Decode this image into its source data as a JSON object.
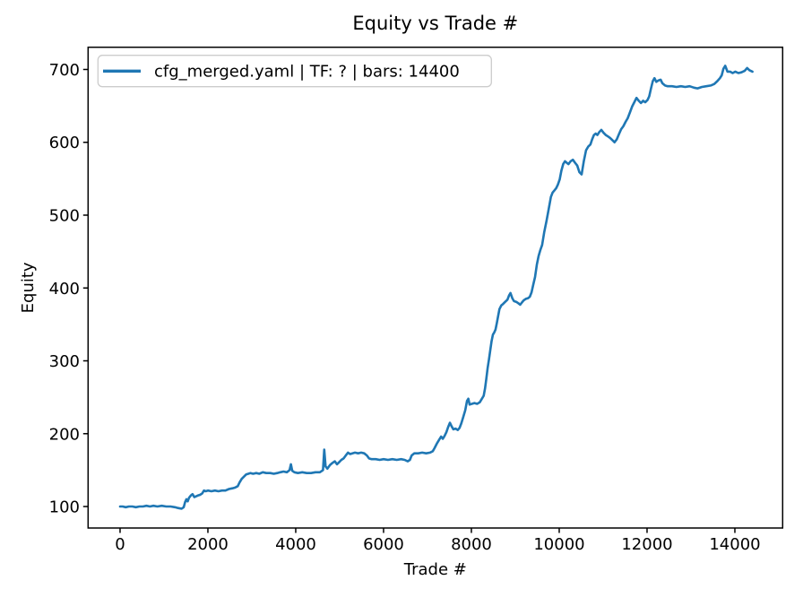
{
  "figure": {
    "title": "Equity vs Trade #",
    "xlabel": "Trade #",
    "ylabel": "Equity",
    "legend": {
      "label": "cfg_merged.yaml | TF: ? | bars: 14400",
      "position": "upper left",
      "edge_color": "#cccccc"
    }
  },
  "chart_data": {
    "type": "line",
    "title": "Equity vs Trade #",
    "xlabel": "Trade #",
    "ylabel": "Equity",
    "grid": false,
    "legend_entries": [
      "cfg_merged.yaml | TF: ? | bars: 14400"
    ],
    "legend_position": "upper left",
    "line_color": "#1f77b4",
    "background": "#ffffff",
    "xlim": [
      -728,
      15088
    ],
    "ylim": [
      70.5,
      730.5
    ],
    "x_ticks": [
      0,
      2000,
      4000,
      6000,
      8000,
      10000,
      12000,
      14000
    ],
    "y_ticks": [
      100,
      200,
      300,
      400,
      500,
      600,
      700
    ],
    "series": [
      {
        "name": "cfg_merged.yaml | TF: ? | bars: 14400",
        "points": [
          [
            0,
            100
          ],
          [
            60,
            100
          ],
          [
            130,
            99
          ],
          [
            200,
            100
          ],
          [
            280,
            100
          ],
          [
            360,
            99
          ],
          [
            440,
            100
          ],
          [
            520,
            100
          ],
          [
            600,
            101
          ],
          [
            680,
            100
          ],
          [
            760,
            101
          ],
          [
            850,
            100
          ],
          [
            950,
            101
          ],
          [
            1050,
            100
          ],
          [
            1150,
            100
          ],
          [
            1250,
            99
          ],
          [
            1320,
            98
          ],
          [
            1400,
            97
          ],
          [
            1450,
            99
          ],
          [
            1480,
            106
          ],
          [
            1510,
            110
          ],
          [
            1540,
            107
          ],
          [
            1570,
            112
          ],
          [
            1610,
            115
          ],
          [
            1650,
            117
          ],
          [
            1690,
            113
          ],
          [
            1730,
            114
          ],
          [
            1770,
            115
          ],
          [
            1820,
            116
          ],
          [
            1870,
            118
          ],
          [
            1910,
            122
          ],
          [
            1950,
            121
          ],
          [
            2000,
            122
          ],
          [
            2080,
            121
          ],
          [
            2160,
            122
          ],
          [
            2240,
            121
          ],
          [
            2320,
            122
          ],
          [
            2400,
            122
          ],
          [
            2480,
            124
          ],
          [
            2560,
            125
          ],
          [
            2620,
            126
          ],
          [
            2680,
            128
          ],
          [
            2720,
            133
          ],
          [
            2770,
            138
          ],
          [
            2820,
            141
          ],
          [
            2870,
            144
          ],
          [
            2920,
            145
          ],
          [
            2970,
            146
          ],
          [
            3030,
            145
          ],
          [
            3100,
            146
          ],
          [
            3170,
            145
          ],
          [
            3250,
            147
          ],
          [
            3330,
            146
          ],
          [
            3420,
            146
          ],
          [
            3500,
            145
          ],
          [
            3580,
            146
          ],
          [
            3650,
            147
          ],
          [
            3720,
            148
          ],
          [
            3800,
            147
          ],
          [
            3860,
            150
          ],
          [
            3890,
            158
          ],
          [
            3920,
            149
          ],
          [
            3970,
            147
          ],
          [
            4050,
            146
          ],
          [
            4150,
            147
          ],
          [
            4250,
            146
          ],
          [
            4350,
            146
          ],
          [
            4450,
            147
          ],
          [
            4550,
            147
          ],
          [
            4620,
            150
          ],
          [
            4650,
            178
          ],
          [
            4680,
            155
          ],
          [
            4720,
            152
          ],
          [
            4780,
            157
          ],
          [
            4840,
            160
          ],
          [
            4890,
            162
          ],
          [
            4940,
            158
          ],
          [
            4990,
            161
          ],
          [
            5040,
            164
          ],
          [
            5090,
            166
          ],
          [
            5140,
            170
          ],
          [
            5190,
            174
          ],
          [
            5240,
            172
          ],
          [
            5290,
            173
          ],
          [
            5350,
            174
          ],
          [
            5420,
            173
          ],
          [
            5490,
            174
          ],
          [
            5560,
            173
          ],
          [
            5620,
            170
          ],
          [
            5670,
            166
          ],
          [
            5730,
            165
          ],
          [
            5820,
            165
          ],
          [
            5910,
            164
          ],
          [
            6000,
            165
          ],
          [
            6100,
            164
          ],
          [
            6200,
            165
          ],
          [
            6300,
            164
          ],
          [
            6400,
            165
          ],
          [
            6480,
            164
          ],
          [
            6550,
            162
          ],
          [
            6600,
            164
          ],
          [
            6640,
            170
          ],
          [
            6700,
            173
          ],
          [
            6790,
            173
          ],
          [
            6880,
            174
          ],
          [
            6970,
            173
          ],
          [
            7060,
            174
          ],
          [
            7120,
            176
          ],
          [
            7160,
            180
          ],
          [
            7210,
            186
          ],
          [
            7260,
            191
          ],
          [
            7310,
            196
          ],
          [
            7350,
            193
          ],
          [
            7390,
            197
          ],
          [
            7430,
            202
          ],
          [
            7470,
            209
          ],
          [
            7510,
            215
          ],
          [
            7550,
            210
          ],
          [
            7590,
            206
          ],
          [
            7640,
            207
          ],
          [
            7690,
            205
          ],
          [
            7730,
            208
          ],
          [
            7770,
            214
          ],
          [
            7810,
            222
          ],
          [
            7860,
            232
          ],
          [
            7900,
            245
          ],
          [
            7930,
            248
          ],
          [
            7960,
            240
          ],
          [
            8010,
            241
          ],
          [
            8070,
            242
          ],
          [
            8130,
            241
          ],
          [
            8190,
            243
          ],
          [
            8240,
            248
          ],
          [
            8280,
            252
          ],
          [
            8310,
            262
          ],
          [
            8340,
            275
          ],
          [
            8370,
            290
          ],
          [
            8400,
            302
          ],
          [
            8430,
            315
          ],
          [
            8460,
            327
          ],
          [
            8490,
            336
          ],
          [
            8520,
            339
          ],
          [
            8550,
            343
          ],
          [
            8580,
            352
          ],
          [
            8610,
            362
          ],
          [
            8640,
            371
          ],
          [
            8680,
            376
          ],
          [
            8720,
            378
          ],
          [
            8770,
            381
          ],
          [
            8820,
            384
          ],
          [
            8860,
            390
          ],
          [
            8890,
            393
          ],
          [
            8930,
            386
          ],
          [
            8970,
            382
          ],
          [
            9020,
            381
          ],
          [
            9070,
            379
          ],
          [
            9110,
            377
          ],
          [
            9150,
            380
          ],
          [
            9190,
            383
          ],
          [
            9240,
            385
          ],
          [
            9290,
            386
          ],
          [
            9330,
            388
          ],
          [
            9370,
            394
          ],
          [
            9410,
            405
          ],
          [
            9450,
            415
          ],
          [
            9490,
            432
          ],
          [
            9530,
            444
          ],
          [
            9570,
            452
          ],
          [
            9610,
            459
          ],
          [
            9660,
            477
          ],
          [
            9710,
            492
          ],
          [
            9760,
            508
          ],
          [
            9810,
            525
          ],
          [
            9850,
            531
          ],
          [
            9890,
            534
          ],
          [
            9930,
            537
          ],
          [
            9970,
            542
          ],
          [
            10010,
            549
          ],
          [
            10050,
            561
          ],
          [
            10090,
            570
          ],
          [
            10130,
            574
          ],
          [
            10170,
            572
          ],
          [
            10210,
            570
          ],
          [
            10260,
            574
          ],
          [
            10310,
            576
          ],
          [
            10360,
            572
          ],
          [
            10410,
            568
          ],
          [
            10460,
            559
          ],
          [
            10510,
            556
          ],
          [
            10560,
            574
          ],
          [
            10610,
            589
          ],
          [
            10660,
            594
          ],
          [
            10710,
            597
          ],
          [
            10750,
            604
          ],
          [
            10790,
            610
          ],
          [
            10830,
            612
          ],
          [
            10870,
            610
          ],
          [
            10910,
            614
          ],
          [
            10960,
            617
          ],
          [
            11010,
            613
          ],
          [
            11060,
            610
          ],
          [
            11110,
            608
          ],
          [
            11160,
            606
          ],
          [
            11210,
            603
          ],
          [
            11260,
            600
          ],
          [
            11310,
            604
          ],
          [
            11360,
            611
          ],
          [
            11410,
            618
          ],
          [
            11460,
            622
          ],
          [
            11510,
            628
          ],
          [
            11560,
            633
          ],
          [
            11610,
            641
          ],
          [
            11660,
            649
          ],
          [
            11710,
            655
          ],
          [
            11760,
            661
          ],
          [
            11810,
            657
          ],
          [
            11860,
            654
          ],
          [
            11910,
            657
          ],
          [
            11960,
            655
          ],
          [
            12010,
            658
          ],
          [
            12050,
            663
          ],
          [
            12090,
            674
          ],
          [
            12130,
            684
          ],
          [
            12170,
            688
          ],
          [
            12210,
            683
          ],
          [
            12260,
            685
          ],
          [
            12310,
            686
          ],
          [
            12350,
            681
          ],
          [
            12410,
            678
          ],
          [
            12470,
            677
          ],
          [
            12570,
            677
          ],
          [
            12670,
            676
          ],
          [
            12770,
            677
          ],
          [
            12870,
            676
          ],
          [
            12970,
            677
          ],
          [
            13070,
            675
          ],
          [
            13150,
            674
          ],
          [
            13250,
            676
          ],
          [
            13350,
            677
          ],
          [
            13450,
            678
          ],
          [
            13530,
            680
          ],
          [
            13600,
            684
          ],
          [
            13660,
            688
          ],
          [
            13700,
            692
          ],
          [
            13740,
            701
          ],
          [
            13780,
            705
          ],
          [
            13830,
            697
          ],
          [
            13890,
            697
          ],
          [
            13950,
            695
          ],
          [
            14010,
            697
          ],
          [
            14080,
            695
          ],
          [
            14150,
            696
          ],
          [
            14220,
            698
          ],
          [
            14280,
            702
          ],
          [
            14330,
            699
          ],
          [
            14400,
            697
          ]
        ]
      }
    ]
  }
}
